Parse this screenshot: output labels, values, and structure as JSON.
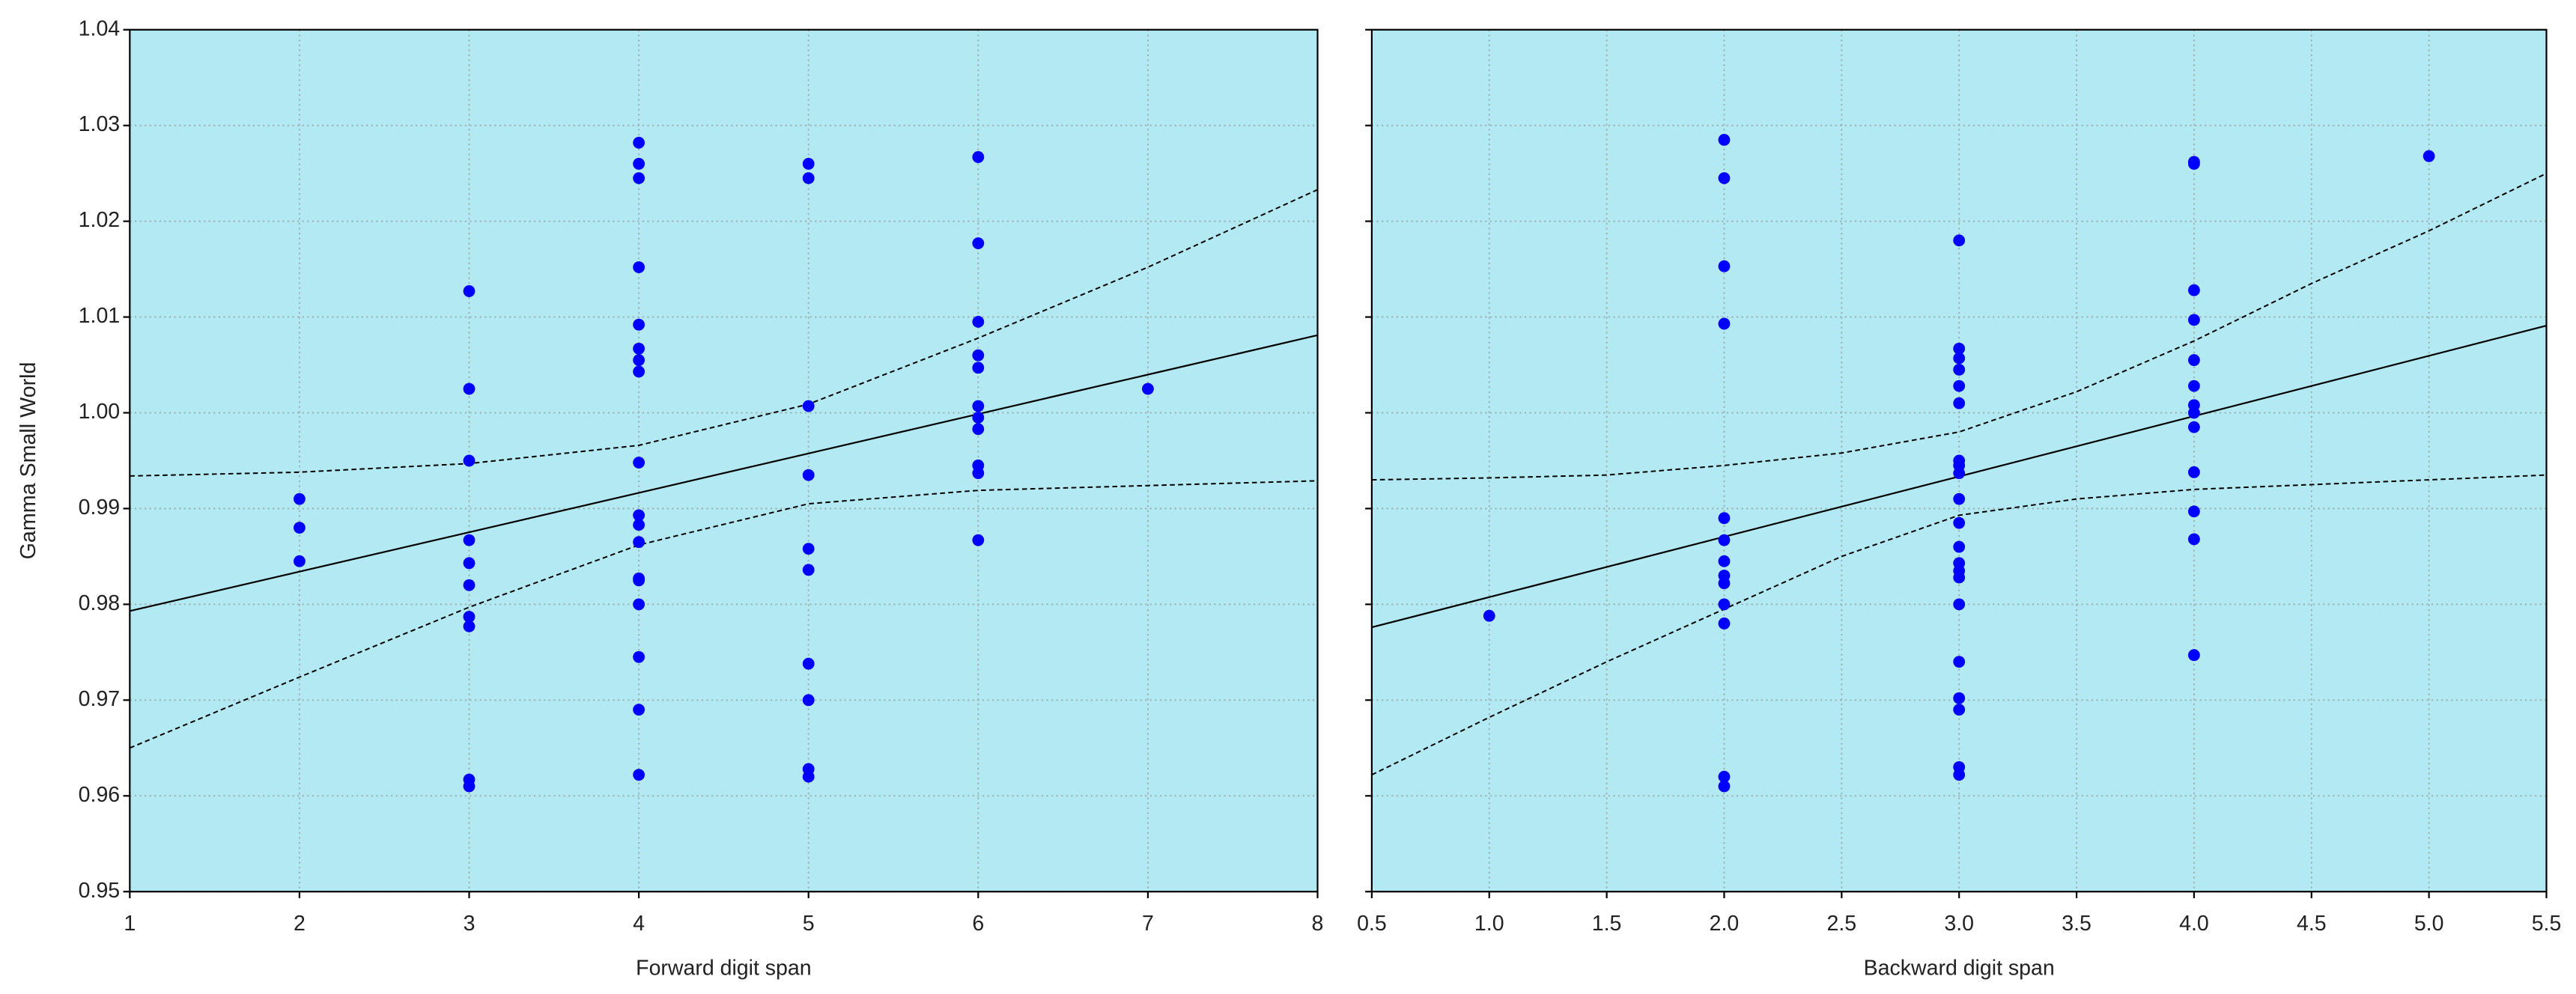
{
  "chart_data": [
    {
      "type": "scatter",
      "xlabel": "Forward digit span",
      "ylabel": "Gamma Small World",
      "xlim": [
        1,
        8
      ],
      "xticks": [
        1,
        2,
        3,
        4,
        5,
        6,
        7,
        8
      ],
      "ylim": [
        0.95,
        1.04
      ],
      "yticks": [
        0.95,
        0.96,
        0.97,
        0.98,
        0.99,
        {
          "value": 1.0,
          "label": "1.00"
        },
        1.01,
        1.02,
        1.03,
        1.04
      ],
      "grid": true,
      "background": "#b3e9f2",
      "color": "#0000ff",
      "x": [
        2,
        2,
        2,
        3,
        3,
        3,
        3,
        3,
        3,
        3,
        3,
        3,
        3,
        4,
        4,
        4,
        4,
        4,
        4,
        4,
        4,
        4,
        4,
        4,
        4,
        4,
        4,
        4,
        4,
        4,
        4,
        5,
        5,
        5,
        5,
        5,
        5,
        5,
        5,
        5,
        5,
        6,
        6,
        6,
        6,
        6,
        6,
        6,
        6,
        6,
        6,
        6,
        7
      ],
      "y": [
        0.991,
        0.988,
        0.9845,
        1.0127,
        1.0025,
        0.995,
        0.9867,
        0.9843,
        0.982,
        0.9787,
        0.9777,
        0.9617,
        0.961,
        1.0282,
        1.026,
        1.0245,
        1.0152,
        1.0092,
        1.0067,
        1.0055,
        1.0043,
        0.9948,
        0.9893,
        0.9883,
        0.9865,
        0.9827,
        0.9825,
        0.98,
        0.9745,
        0.969,
        0.9622,
        1.026,
        1.0245,
        1.0007,
        0.9935,
        0.9858,
        0.9836,
        0.9738,
        0.97,
        0.9628,
        0.962,
        1.0267,
        1.0177,
        1.0095,
        1.006,
        1.0047,
        1.0007,
        0.9995,
        0.9983,
        0.9945,
        0.9937,
        0.9867,
        1.0025
      ],
      "fit": {
        "x": [
          1,
          8
        ],
        "y": [
          0.9793,
          1.0081
        ]
      },
      "confidence": {
        "x": [
          1,
          2,
          3,
          4,
          5,
          6,
          7,
          8
        ],
        "upper": [
          0.9934,
          0.9938,
          0.9947,
          0.9966,
          1.0009,
          1.0078,
          1.0152,
          1.0233
        ],
        "lower": [
          0.965,
          0.9724,
          0.9797,
          0.9862,
          0.9905,
          0.9919,
          0.9924,
          0.9929
        ]
      }
    },
    {
      "type": "scatter",
      "xlabel": "Backward digit span",
      "xlim": [
        0.5,
        5.5
      ],
      "xticks": [
        0.5,
        {
          "value": 1,
          "label": "1.0"
        },
        1.5,
        {
          "value": 2,
          "label": "2.0"
        },
        2.5,
        {
          "value": 3,
          "label": "3.0"
        },
        3.5,
        {
          "value": 4,
          "label": "4.0"
        },
        4.5,
        {
          "value": 5,
          "label": "5.0"
        },
        5.5
      ],
      "ylim": [
        0.95,
        1.04
      ],
      "grid": true,
      "background": "#b3e9f2",
      "color": "#0000ff",
      "x": [
        1,
        2,
        2,
        2,
        2,
        2,
        2,
        2,
        2,
        2,
        2,
        2,
        2,
        2,
        3,
        3,
        3,
        3,
        3,
        3,
        3,
        3,
        3,
        3,
        3,
        3,
        3,
        3,
        3,
        3,
        3,
        3,
        3,
        3,
        3,
        4,
        4,
        4,
        4,
        4,
        4,
        4,
        4,
        4,
        4,
        4,
        4,
        4,
        5
      ],
      "y": [
        0.9788,
        1.0285,
        1.0245,
        1.0153,
        1.0093,
        0.989,
        0.9867,
        0.9845,
        0.983,
        0.9822,
        0.98,
        0.978,
        0.962,
        0.961,
        1.018,
        1.0067,
        1.0057,
        1.0045,
        1.0028,
        1.001,
        0.995,
        0.9945,
        0.9937,
        0.991,
        0.9885,
        0.986,
        0.9843,
        0.9835,
        0.9828,
        0.98,
        0.974,
        0.9702,
        0.969,
        0.963,
        0.9622,
        1.0262,
        1.026,
        1.0128,
        1.0097,
        1.0055,
        1.0028,
        1.0008,
        1.0,
        0.9985,
        0.9938,
        0.9897,
        0.9868,
        0.9747,
        1.0268
      ],
      "fit": {
        "x": [
          0.5,
          5.5
        ],
        "y": [
          0.9776,
          1.0091
        ]
      },
      "confidence": {
        "x": [
          0.5,
          1,
          1.5,
          2,
          2.5,
          3,
          3.5,
          4,
          4.5,
          5,
          5.5
        ],
        "upper": [
          0.993,
          0.9932,
          0.9935,
          0.9945,
          0.9958,
          0.998,
          1.0022,
          1.0075,
          1.0135,
          1.019,
          1.025
        ],
        "lower": [
          0.9622,
          0.9682,
          0.974,
          0.9795,
          0.985,
          0.9893,
          0.991,
          0.992,
          0.9925,
          0.993,
          0.9935
        ]
      }
    }
  ]
}
